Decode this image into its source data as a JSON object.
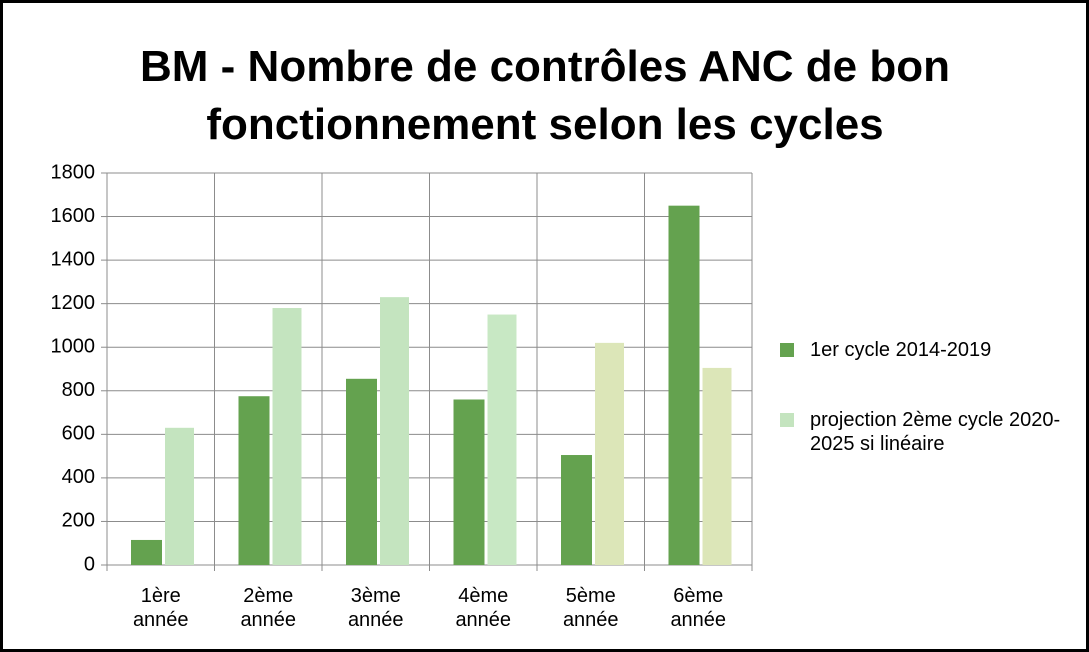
{
  "chart_data": {
    "type": "bar",
    "title": "BM - Nombre de contrôles ANC de bon fonctionnement selon les cycles",
    "categories": [
      "1ère année",
      "2ème année",
      "3ème année",
      "4ème année",
      "5ème année",
      "6ème année"
    ],
    "series": [
      {
        "name": "1er cycle 2014-2019",
        "color": "#64a24f",
        "values": [
          115,
          775,
          855,
          760,
          505,
          1650
        ]
      },
      {
        "name": "projection 2ème cycle 2020-2025 si linéaire",
        "color": "#c4e4bf",
        "colors": [
          "#c4e4bf",
          "#c4e4bf",
          "#c4e4bf",
          "#c8e8c4",
          "#dce6b8",
          "#dce6b8"
        ],
        "values": [
          630,
          1180,
          1230,
          1150,
          1020,
          905
        ]
      }
    ],
    "ylim": [
      0,
      1800
    ],
    "yticks": [
      0,
      200,
      400,
      600,
      800,
      1000,
      1200,
      1400,
      1600,
      1800
    ],
    "grid": true,
    "legend": "right"
  }
}
